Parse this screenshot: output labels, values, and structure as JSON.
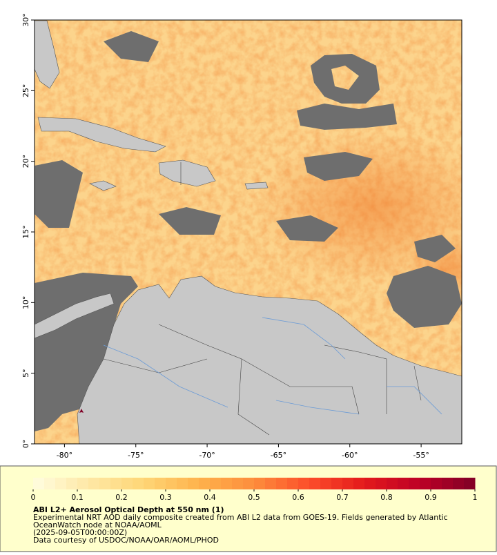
{
  "map": {
    "xlim": [
      -82.1,
      -52.15
    ],
    "ylim": [
      0,
      30
    ],
    "xticks": [
      {
        "value": -80,
        "label": "-80°"
      },
      {
        "value": -75,
        "label": "-75°"
      },
      {
        "value": -70,
        "label": "-70°"
      },
      {
        "value": -65,
        "label": "-65°"
      },
      {
        "value": -60,
        "label": "-60°"
      },
      {
        "value": -55,
        "label": "-55°"
      }
    ],
    "yticks": [
      {
        "value": 0,
        "label": "0°"
      },
      {
        "value": 5,
        "label": "5°"
      },
      {
        "value": 10,
        "label": "10°"
      },
      {
        "value": 15,
        "label": "15°"
      },
      {
        "value": 20,
        "label": "20°"
      },
      {
        "value": 25,
        "label": "25°"
      },
      {
        "value": 30,
        "label": "30°"
      }
    ]
  },
  "colorbar": {
    "lim": [
      0,
      1
    ],
    "ticks": [
      0,
      0.1,
      0.2,
      0.3,
      0.4,
      0.5,
      0.6,
      0.7,
      0.8,
      0.9,
      1
    ],
    "colors": [
      "#fffde0",
      "#fee8a6",
      "#fed676",
      "#feb24c",
      "#fd8d3c",
      "#fc4e2a",
      "#e31a1c",
      "#bd0026",
      "#800026"
    ]
  },
  "legend": {
    "title": "ABI L2+ Aerosol Optical Depth at 550 nm (1)",
    "lines": [
      "Experimental NRT AOD daily composite created from ABI L2 data from GOES-19. Fields generated by Atlantic",
      "OceanWatch node at NOAA/AOML",
      "(2025-09-05T00:00:00Z)",
      "Data courtesy of USDOC/NOAA/OAR/AOML/PHOD"
    ]
  }
}
